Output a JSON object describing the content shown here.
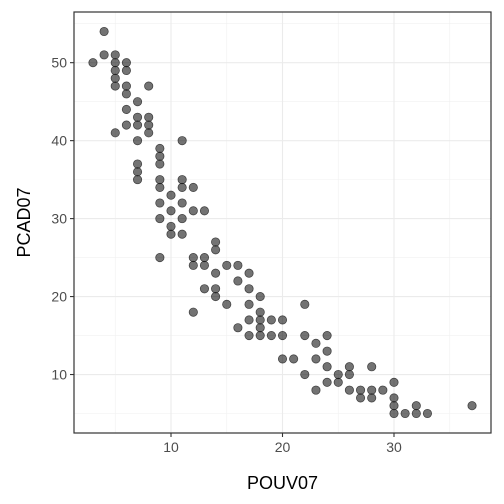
{
  "chart_data": {
    "type": "scatter",
    "title": "",
    "xlabel": "POUV07",
    "ylabel": "PCAD07",
    "xlim": [
      1.3,
      38.7
    ],
    "ylim": [
      2.5,
      56.5
    ],
    "x_ticks": [
      10,
      20,
      30
    ],
    "y_ticks": [
      10,
      20,
      30,
      40,
      50
    ],
    "grid": true,
    "legend": "none",
    "point_color": "#000000",
    "point_opacity": 0.55,
    "points": [
      [
        3,
        50
      ],
      [
        4,
        51
      ],
      [
        4,
        54
      ],
      [
        5,
        51
      ],
      [
        5,
        50
      ],
      [
        5,
        49
      ],
      [
        5,
        48
      ],
      [
        5,
        47
      ],
      [
        5,
        41
      ],
      [
        6,
        50
      ],
      [
        6,
        49
      ],
      [
        6,
        47
      ],
      [
        6,
        46
      ],
      [
        6,
        44
      ],
      [
        6,
        42
      ],
      [
        7,
        45
      ],
      [
        7,
        43
      ],
      [
        7,
        42
      ],
      [
        7,
        40
      ],
      [
        7,
        37
      ],
      [
        7,
        36
      ],
      [
        7,
        35
      ],
      [
        8,
        47
      ],
      [
        8,
        43
      ],
      [
        8,
        42
      ],
      [
        8,
        41
      ],
      [
        9,
        39
      ],
      [
        9,
        38
      ],
      [
        9,
        37
      ],
      [
        9,
        35
      ],
      [
        9,
        34
      ],
      [
        9,
        32
      ],
      [
        9,
        30
      ],
      [
        9,
        25
      ],
      [
        10,
        33
      ],
      [
        10,
        31
      ],
      [
        10,
        29
      ],
      [
        10,
        28
      ],
      [
        11,
        40
      ],
      [
        11,
        35
      ],
      [
        11,
        34
      ],
      [
        11,
        32
      ],
      [
        11,
        30
      ],
      [
        11,
        28
      ],
      [
        12,
        34
      ],
      [
        12,
        31
      ],
      [
        12,
        25
      ],
      [
        12,
        24
      ],
      [
        12,
        18
      ],
      [
        13,
        31
      ],
      [
        13,
        25
      ],
      [
        13,
        24
      ],
      [
        13,
        21
      ],
      [
        14,
        27
      ],
      [
        14,
        26
      ],
      [
        14,
        23
      ],
      [
        14,
        21
      ],
      [
        14,
        20
      ],
      [
        15,
        24
      ],
      [
        15,
        19
      ],
      [
        16,
        24
      ],
      [
        16,
        22
      ],
      [
        16,
        16
      ],
      [
        17,
        23
      ],
      [
        17,
        21
      ],
      [
        17,
        19
      ],
      [
        17,
        17
      ],
      [
        17,
        15
      ],
      [
        18,
        20
      ],
      [
        18,
        18
      ],
      [
        18,
        17
      ],
      [
        18,
        16
      ],
      [
        18,
        15
      ],
      [
        19,
        17
      ],
      [
        19,
        15
      ],
      [
        20,
        17
      ],
      [
        20,
        15
      ],
      [
        20,
        12
      ],
      [
        21,
        12
      ],
      [
        22,
        19
      ],
      [
        22,
        15
      ],
      [
        22,
        10
      ],
      [
        23,
        14
      ],
      [
        23,
        12
      ],
      [
        23,
        8
      ],
      [
        24,
        15
      ],
      [
        24,
        13
      ],
      [
        24,
        11
      ],
      [
        24,
        9
      ],
      [
        25,
        10
      ],
      [
        25,
        9
      ],
      [
        26,
        11
      ],
      [
        26,
        10
      ],
      [
        26,
        8
      ],
      [
        27,
        8
      ],
      [
        27,
        7
      ],
      [
        28,
        11
      ],
      [
        28,
        8
      ],
      [
        28,
        7
      ],
      [
        29,
        8
      ],
      [
        30,
        9
      ],
      [
        30,
        7
      ],
      [
        30,
        6
      ],
      [
        30,
        5
      ],
      [
        31,
        5
      ],
      [
        32,
        6
      ],
      [
        32,
        5
      ],
      [
        33,
        5
      ],
      [
        37,
        6
      ]
    ]
  }
}
